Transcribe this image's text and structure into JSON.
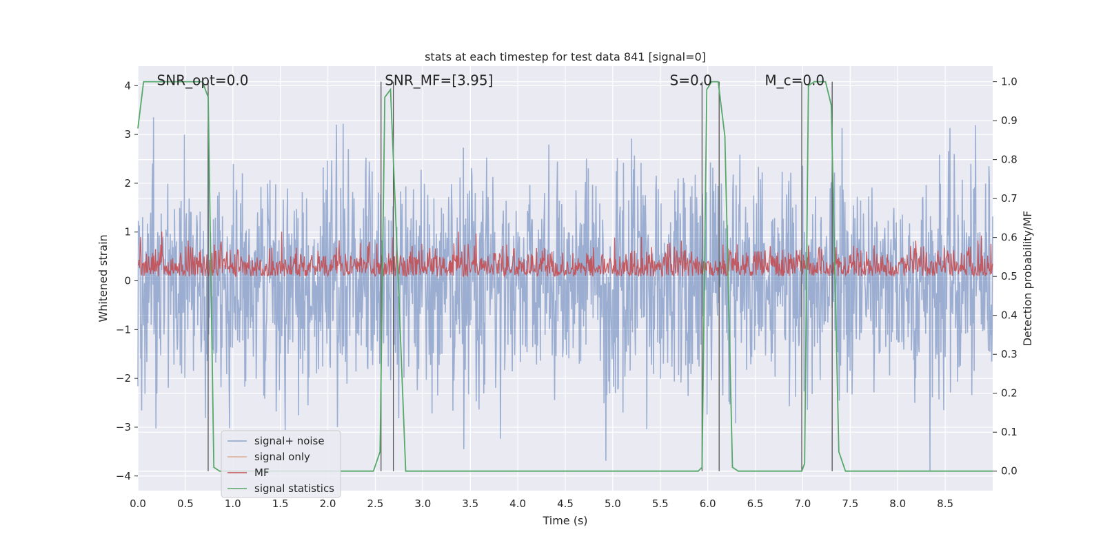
{
  "chart_data": {
    "type": "line",
    "title": "stats at each timestep for test data 841 [signal=0]",
    "xlabel": "Time (s)",
    "ylabel": "Whitened strain",
    "ylabel_right": "Detection probability/MF",
    "xlim": [
      0.0,
      9.0
    ],
    "ylim": [
      -4.3,
      4.4
    ],
    "ylim_right": [
      -0.05,
      1.04
    ],
    "x_ticks": [
      "0.0",
      "0.5",
      "1.0",
      "1.5",
      "2.0",
      "2.5",
      "3.0",
      "3.5",
      "4.0",
      "4.5",
      "5.0",
      "5.5",
      "6.0",
      "6.5",
      "7.0",
      "7.5",
      "8.0",
      "8.5"
    ],
    "y_ticks": [
      "4",
      "3",
      "2",
      "1",
      "0",
      "−1",
      "−2",
      "−3",
      "−4"
    ],
    "y_right_ticks": [
      "1.0",
      "0.9",
      "0.8",
      "0.7",
      "0.6",
      "0.5",
      "0.4",
      "0.3",
      "0.2",
      "0.1",
      "0.0"
    ],
    "grid": true,
    "legend_position": "lower-left",
    "annotations": [
      {
        "text": "SNR_opt=0.0",
        "x": 0.2,
        "y": 4.0
      },
      {
        "text": "SNR_MF=[3.95]",
        "x": 2.6,
        "y": 4.0
      },
      {
        "text": "S=0.0",
        "x": 5.6,
        "y": 4.0
      },
      {
        "text": "M_c=0.0",
        "x": 6.6,
        "y": 4.0
      }
    ],
    "vertical_lines": [
      0.74,
      2.56,
      2.69,
      5.94,
      6.12,
      6.99,
      7.31
    ],
    "series": [
      {
        "name": "signal+ noise",
        "color": "#4c72b0",
        "axis": "left",
        "style": "dense noise, approx. range -3.9 to 4.0"
      },
      {
        "name": "signal only",
        "color": "#dd8452",
        "axis": "left",
        "values": []
      },
      {
        "name": "MF",
        "color": "#c44e52",
        "axis": "right",
        "style": "dense noise, approx. range 0.5 to 0.6"
      },
      {
        "name": "signal statistics",
        "color": "#55a868",
        "axis": "right",
        "points": [
          [
            0.0,
            0.88
          ],
          [
            0.06,
            1.0
          ],
          [
            0.68,
            1.0
          ],
          [
            0.74,
            0.96
          ],
          [
            0.8,
            0.01
          ],
          [
            0.86,
            0.0
          ],
          [
            2.48,
            0.0
          ],
          [
            2.55,
            0.05
          ],
          [
            2.6,
            0.96
          ],
          [
            2.66,
            0.98
          ],
          [
            2.74,
            0.5
          ],
          [
            2.82,
            0.0
          ],
          [
            5.9,
            0.0
          ],
          [
            5.94,
            0.01
          ],
          [
            5.99,
            0.98
          ],
          [
            6.04,
            1.0
          ],
          [
            6.11,
            1.0
          ],
          [
            6.18,
            0.86
          ],
          [
            6.26,
            0.01
          ],
          [
            6.32,
            0.0
          ],
          [
            6.99,
            0.0
          ],
          [
            7.02,
            0.02
          ],
          [
            7.06,
            0.99
          ],
          [
            7.12,
            1.0
          ],
          [
            7.24,
            1.0
          ],
          [
            7.3,
            0.94
          ],
          [
            7.38,
            0.05
          ],
          [
            7.45,
            0.0
          ],
          [
            9.0,
            0.0
          ]
        ]
      }
    ]
  }
}
